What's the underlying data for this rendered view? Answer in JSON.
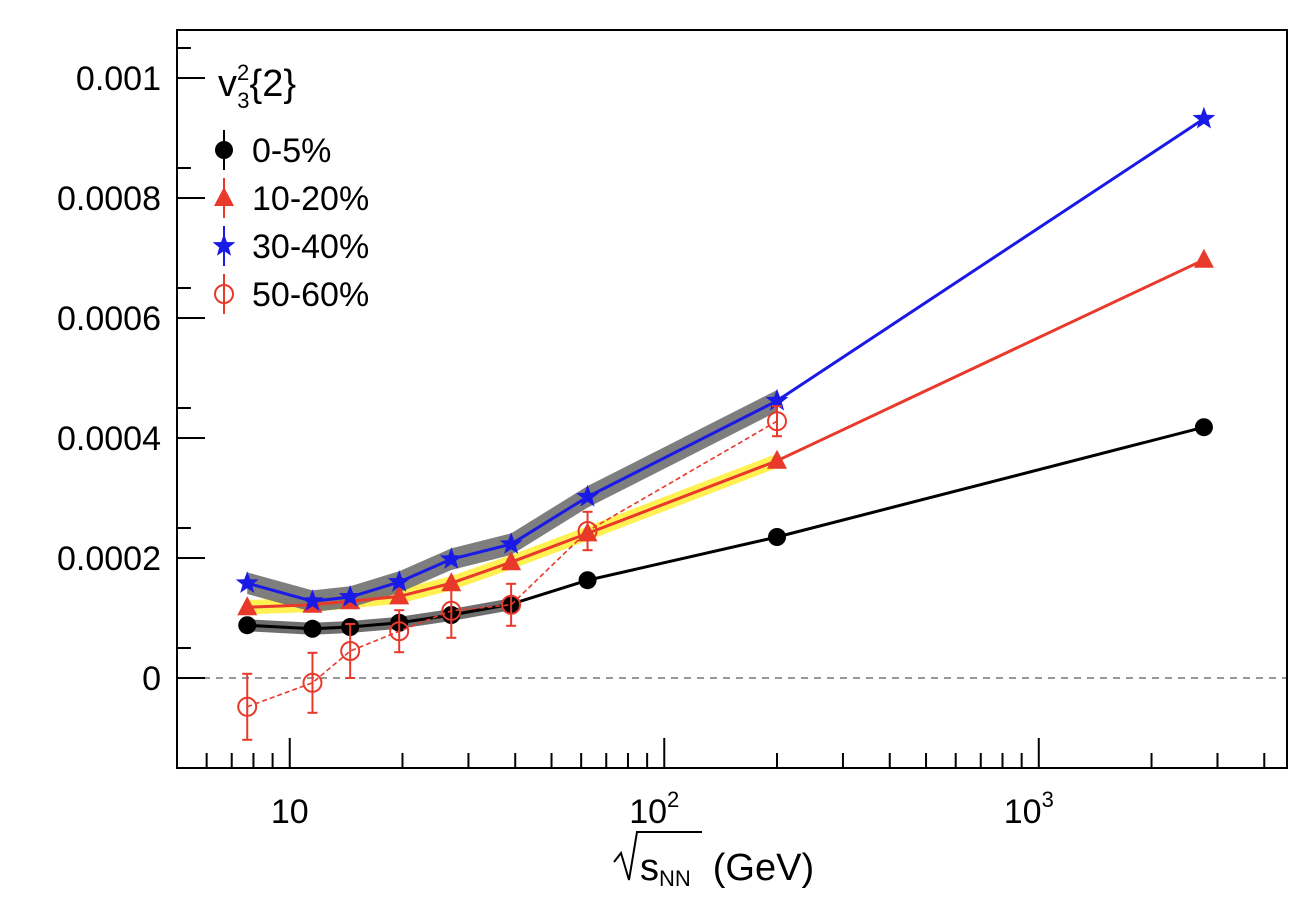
{
  "chart_data": {
    "type": "line",
    "x_scale": "log",
    "xlim": [
      5,
      4600
    ],
    "ylim": [
      -0.00015,
      0.00108
    ],
    "legend_title": {
      "base": "v",
      "sup": "2",
      "sub": "3",
      "rest": "{2}"
    },
    "xlabel": {
      "radical": "√",
      "var": "s",
      "sub": "NN",
      "units": "(GeV)"
    },
    "x_tick_labels": [
      {
        "x": 10,
        "base": "10",
        "exp": ""
      },
      {
        "x": 100,
        "base": "10",
        "exp": "2"
      },
      {
        "x": 1000,
        "base": "10",
        "exp": "3"
      }
    ],
    "y_ticks": [
      0,
      0.0002,
      0.0004,
      0.0006,
      0.0008,
      0.001
    ],
    "y_tick_labels": [
      "0",
      "0.0002",
      "0.0004",
      "0.0006",
      "0.0008",
      "0.001"
    ],
    "reference_line": 0,
    "series": [
      {
        "name": "0-5%",
        "color": "#000000",
        "marker": "circle-filled",
        "band_color": "#555555",
        "x": [
          7.7,
          11.5,
          14.5,
          19.6,
          27,
          39,
          62.4,
          200,
          2760
        ],
        "y": [
          8.8e-05,
          8.2e-05,
          8.5e-05,
          9.2e-05,
          0.000105,
          0.000123,
          0.000163,
          0.000235,
          0.000418
        ],
        "err": [
          8e-06,
          6e-06,
          6e-06,
          5e-06,
          5e-06,
          5e-06,
          4e-06,
          4e-06,
          4e-06
        ],
        "band_x": [
          7.7,
          11.5,
          14.5,
          19.6,
          27,
          39
        ],
        "band_half": 1e-05
      },
      {
        "name": "10-20%",
        "color": "#e8392b",
        "marker": "triangle-filled",
        "band_color": "#ffee33",
        "x": [
          7.7,
          11.5,
          14.5,
          19.6,
          27,
          39,
          62.4,
          200,
          2760
        ],
        "y": [
          0.000118,
          0.000122,
          0.000128,
          0.000136,
          0.000158,
          0.000193,
          0.000241,
          0.000362,
          0.000697
        ],
        "err": [
          7e-06,
          5e-06,
          5e-06,
          4e-06,
          4e-06,
          4e-06,
          4e-06,
          4e-06,
          4e-06
        ],
        "band_x": [
          7.7,
          11.5,
          14.5,
          19.6,
          27,
          39,
          62.4,
          200
        ],
        "band_half": 1.2e-05
      },
      {
        "name": "30-40%",
        "color": "#1a1ae6",
        "marker": "star-filled",
        "band_color": "#707070",
        "x": [
          7.7,
          11.5,
          14.5,
          19.6,
          27,
          39,
          62.4,
          200,
          2760
        ],
        "y": [
          0.000158,
          0.000128,
          0.000135,
          0.00016,
          0.000198,
          0.000223,
          0.000302,
          0.000462,
          0.000932
        ],
        "err": [
          8e-06,
          6e-06,
          6e-06,
          5e-06,
          5e-06,
          5e-06,
          5e-06,
          5e-06,
          5e-06
        ],
        "band_x": [
          7.7,
          11.5,
          14.5,
          19.6,
          27,
          39,
          62.4,
          200
        ],
        "band_half": 1.8e-05
      },
      {
        "name": "50-60%",
        "color": "#e8392b",
        "marker": "circle-open",
        "dashed": true,
        "x": [
          7.7,
          11.5,
          14.5,
          19.6,
          27,
          39,
          62.4,
          200
        ],
        "y": [
          -4.8e-05,
          -8e-06,
          4.5e-05,
          7.8e-05,
          0.000112,
          0.000122,
          0.000245,
          0.000428
        ],
        "err": [
          5.5e-05,
          5e-05,
          4.5e-05,
          3.5e-05,
          4.5e-05,
          3.5e-05,
          3.2e-05,
          2.5e-05
        ]
      }
    ]
  }
}
